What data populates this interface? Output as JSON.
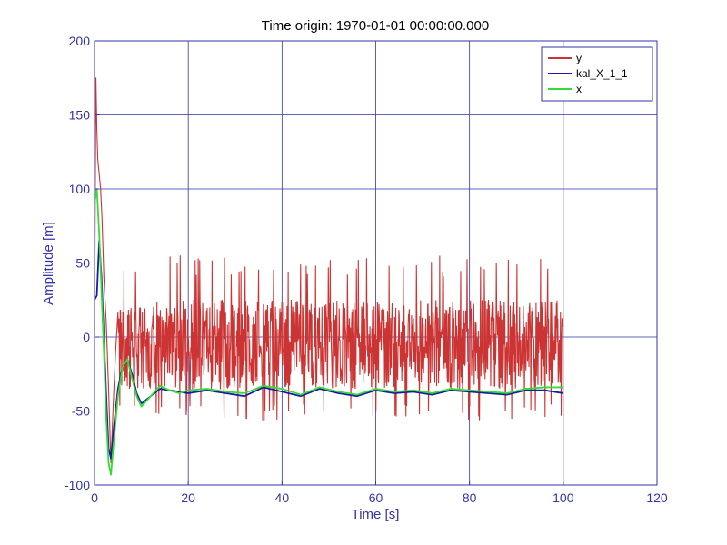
{
  "chart_data": {
    "type": "line",
    "title": "Time origin: 1970-01-01 00:00:00.000",
    "xlabel": "Time  [s]",
    "ylabel": "Amplitude  [m]",
    "xlim": [
      0,
      120
    ],
    "ylim": [
      -100,
      200
    ],
    "xticks": [
      0,
      20,
      40,
      60,
      80,
      100,
      120
    ],
    "yticks": [
      -100,
      -50,
      0,
      50,
      100,
      150,
      200
    ],
    "xtick_labels": [
      "0",
      "20",
      "40",
      "60",
      "80",
      "100",
      "120"
    ],
    "ytick_labels": [
      "-100",
      "-50",
      "0",
      "50",
      "100",
      "150",
      "200"
    ],
    "grid": true,
    "legend_position": "top-right",
    "axis_color": "#3333aa",
    "series": [
      {
        "name": "y",
        "color": "#cc3333",
        "x": [
          0.0,
          0.3,
          0.5,
          0.7,
          1.0,
          1.3,
          1.6,
          2.0,
          2.5,
          3.0,
          3.5,
          4.0,
          4.5,
          5.0,
          5.5,
          6.0,
          6.5,
          7.0,
          7.5,
          8.0,
          9.0,
          10.0,
          12.0,
          15.0,
          20.0,
          25.0,
          30.0,
          35.0,
          37.0,
          40.0,
          45.0,
          50.0,
          55.0,
          60.0,
          65.0,
          70.0,
          75.0,
          80.0,
          85.0,
          90.0,
          95.0,
          100.0
        ],
        "values": [
          5,
          175,
          140,
          120,
          110,
          100,
          80,
          40,
          10,
          -35,
          -85,
          -45,
          -10,
          20,
          -15,
          30,
          10,
          70,
          20,
          35,
          10,
          0,
          5,
          -5,
          0,
          -10,
          5,
          0,
          55,
          0,
          -5,
          5,
          0,
          0,
          5,
          0,
          -5,
          0,
          5,
          0,
          -5,
          0
        ],
        "noise_band": {
          "from_x": 5,
          "to_x": 100,
          "upper": 25,
          "lower": -35,
          "peak_max": 55,
          "peak_min": -57
        }
      },
      {
        "name": "kal_X_1_1",
        "color": "#1a1aa6",
        "x": [
          0.0,
          0.5,
          1.0,
          1.5,
          2.0,
          2.5,
          3.0,
          3.5,
          4.0,
          5.0,
          6.0,
          7.0,
          8.0,
          9.0,
          10.0,
          12.0,
          14.0,
          16.0,
          18.0,
          20.0,
          24.0,
          28.0,
          32.0,
          36.0,
          40.0,
          44.0,
          48.0,
          52.0,
          56.0,
          60.0,
          64.0,
          68.0,
          72.0,
          76.0,
          80.0,
          84.0,
          88.0,
          92.0,
          96.0,
          100.0
        ],
        "values": [
          25,
          28,
          65,
          40,
          0,
          -40,
          -75,
          -82,
          -65,
          -35,
          -20,
          -15,
          -25,
          -38,
          -45,
          -40,
          -35,
          -36,
          -37,
          -38,
          -36,
          -38,
          -40,
          -34,
          -37,
          -40,
          -35,
          -38,
          -40,
          -36,
          -38,
          -37,
          -39,
          -36,
          -37,
          -38,
          -39,
          -36,
          -36,
          -38
        ]
      },
      {
        "name": "x",
        "color": "#33dd33",
        "x": [
          0.0,
          0.5,
          1.0,
          1.5,
          2.0,
          2.5,
          3.0,
          3.5,
          4.0,
          5.0,
          6.0,
          7.0,
          8.0,
          9.0,
          10.0,
          12.0,
          14.0,
          16.0,
          18.0,
          20.0,
          24.0,
          28.0,
          32.0,
          36.0,
          40.0,
          44.0,
          48.0,
          52.0,
          56.0,
          60.0,
          64.0,
          68.0,
          72.0,
          76.0,
          80.0,
          84.0,
          88.0,
          92.0,
          96.0,
          100.0
        ],
        "values": [
          90,
          100,
          70,
          30,
          -10,
          -55,
          -85,
          -93,
          -75,
          -40,
          -20,
          -15,
          -28,
          -40,
          -47,
          -40,
          -33,
          -36,
          -38,
          -36,
          -35,
          -37,
          -38,
          -33,
          -35,
          -39,
          -34,
          -37,
          -39,
          -35,
          -37,
          -36,
          -38,
          -35,
          -36,
          -37,
          -38,
          -35,
          -34,
          -34
        ]
      }
    ]
  }
}
